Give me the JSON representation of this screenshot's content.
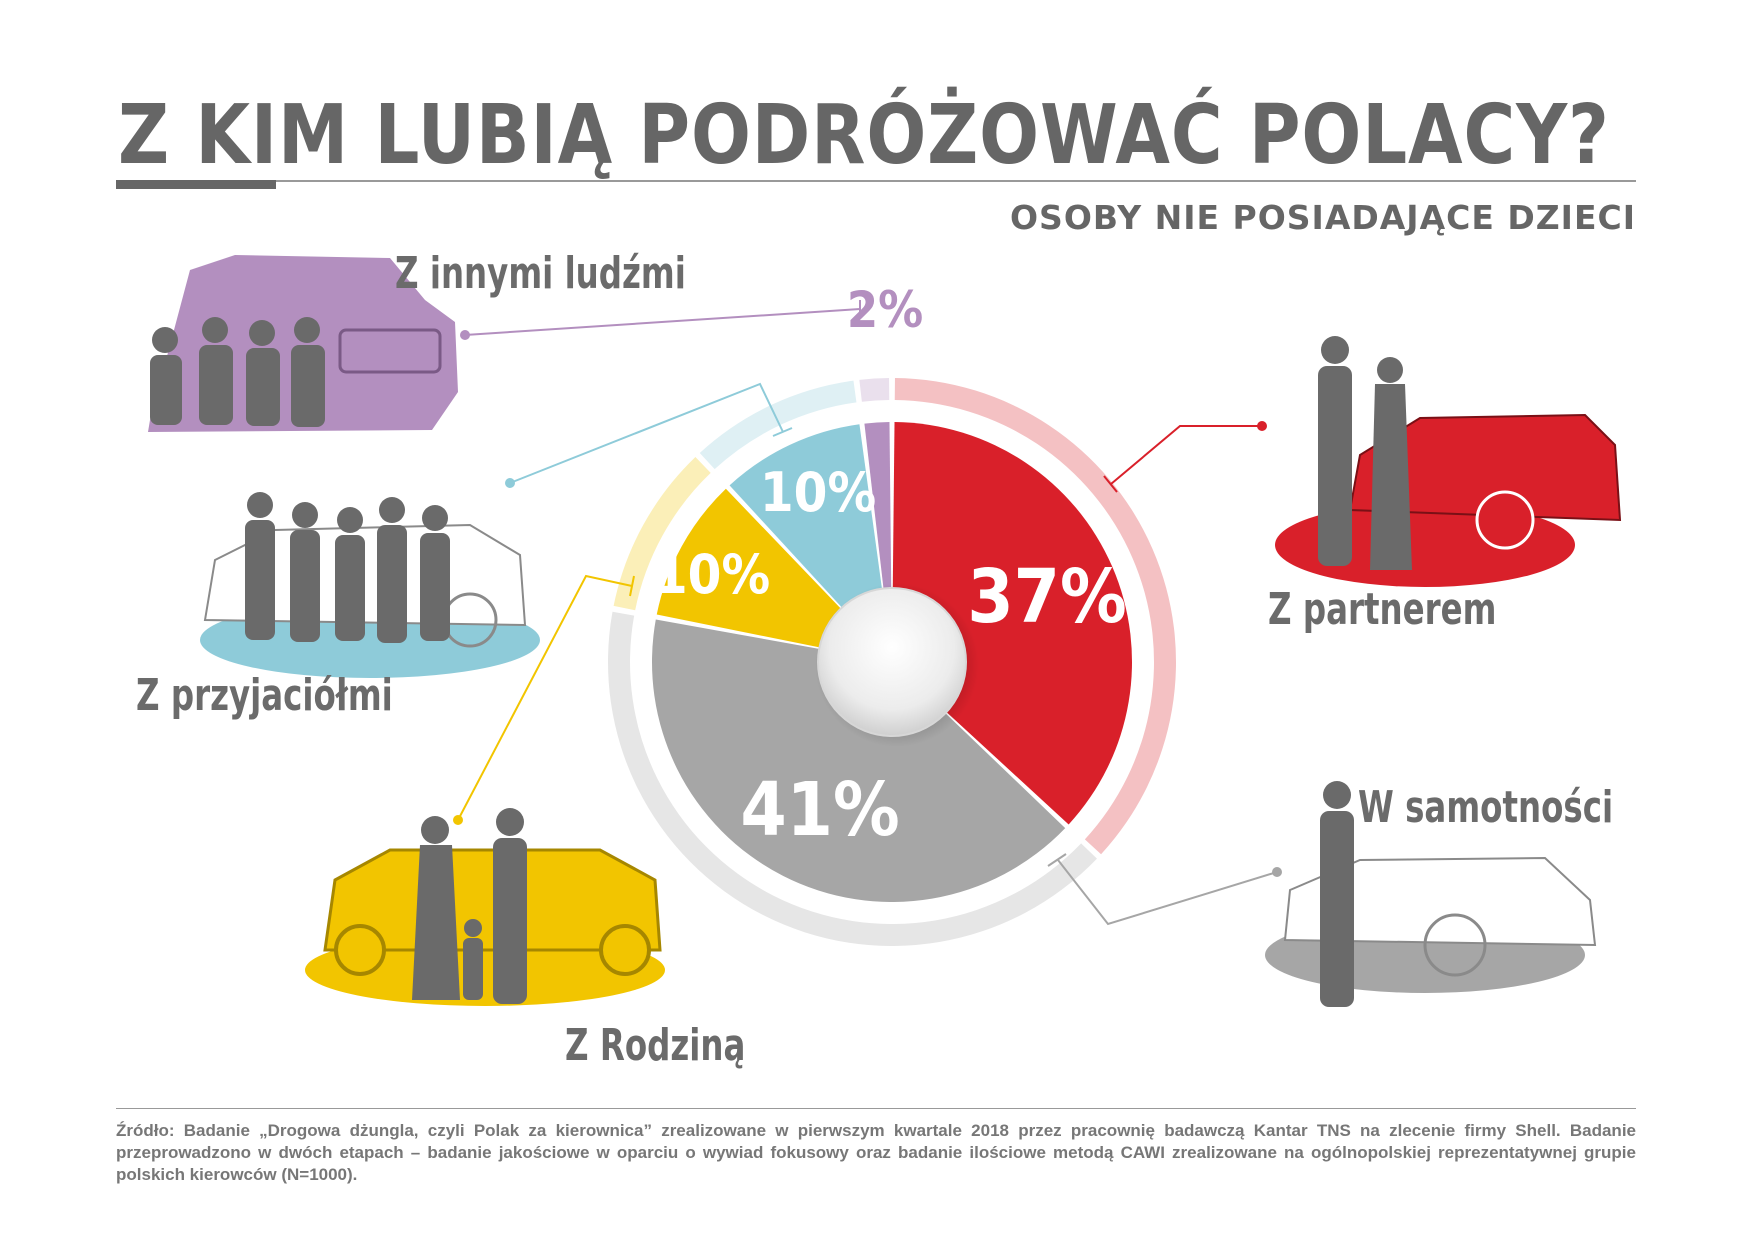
{
  "title": "Z KIM LUBIĄ PODRÓŻOWAĆ POLACY?",
  "subtitle": "OSOBY NIE POSIADAJĄCE DZIECI",
  "colors": {
    "partner": "#d9202a",
    "samotnosc": "#a6a6a6",
    "rodzina": "#f2c500",
    "przyjaciele": "#8ecbd9",
    "inni": "#b38fbf"
  },
  "chart_data": {
    "type": "pie",
    "slices": [
      {
        "label": "Z partnerem",
        "value": 37,
        "display": "37%",
        "color": "#d9202a"
      },
      {
        "label": "W samotności",
        "value": 41,
        "display": "41%",
        "color": "#a6a6a6"
      },
      {
        "label": "Z Rodziną",
        "value": 10,
        "display": "10%",
        "color": "#f2c500"
      },
      {
        "label": "Z przyjaciółmi",
        "value": 10,
        "display": "10%",
        "color": "#8ecbd9"
      },
      {
        "label": "Z innymi ludźmi",
        "value": 2,
        "display": "2%",
        "color": "#b38fbf"
      }
    ]
  },
  "labels": {
    "inni": "Z innymi ludźmi",
    "przyjaciele": "Z przyjaciółmi",
    "rodzina": "Z Rodziną",
    "partner": "Z partnerem",
    "samotnosc": "W samotności"
  },
  "footer": "Źródło: Badanie „Drogowa dżungla, czyli Polak za kierownica” zrealizowane w pierwszym kwartale 2018 przez pracownię badawczą Kantar TNS na zlecenie firmy Shell. Badanie przeprowadzono w dwóch etapach – badanie jakościowe w oparciu o wywiad fokusowy oraz badanie ilościowe metodą CAWI zrealizowane na ogólnopolskiej reprezentatywnej grupie polskich kierowców (N=1000)."
}
